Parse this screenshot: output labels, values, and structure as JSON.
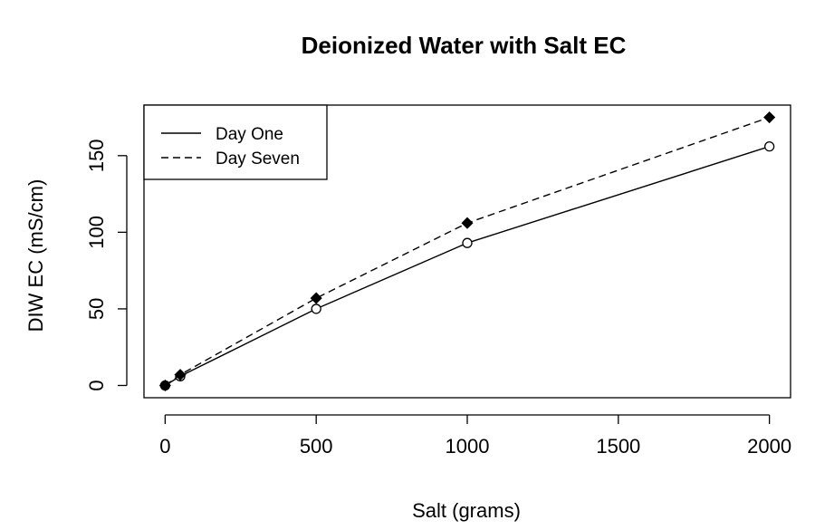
{
  "chart_data": {
    "type": "line",
    "title": "Deionized Water with Salt EC",
    "xlabel": "Salt (grams)",
    "ylabel": "DIW EC (mS/cm)",
    "xlim": [
      -70,
      2070
    ],
    "ylim": [
      -8,
      183
    ],
    "x_ticks": [
      0,
      500,
      1000,
      1500,
      2000
    ],
    "y_ticks": [
      0,
      50,
      100,
      150
    ],
    "x": [
      0,
      50,
      500,
      1000,
      2000
    ],
    "series": [
      {
        "name": "Day One",
        "values": [
          0,
          6,
          50,
          93,
          156
        ],
        "line_style": "solid",
        "marker": "open-circle"
      },
      {
        "name": "Day Seven",
        "values": [
          0,
          7,
          57,
          106,
          175
        ],
        "line_style": "dashed",
        "marker": "filled-diamond"
      }
    ],
    "grid": false,
    "legend_position": "top-left"
  },
  "colors": {
    "line": "#000000",
    "background": "#ffffff"
  }
}
